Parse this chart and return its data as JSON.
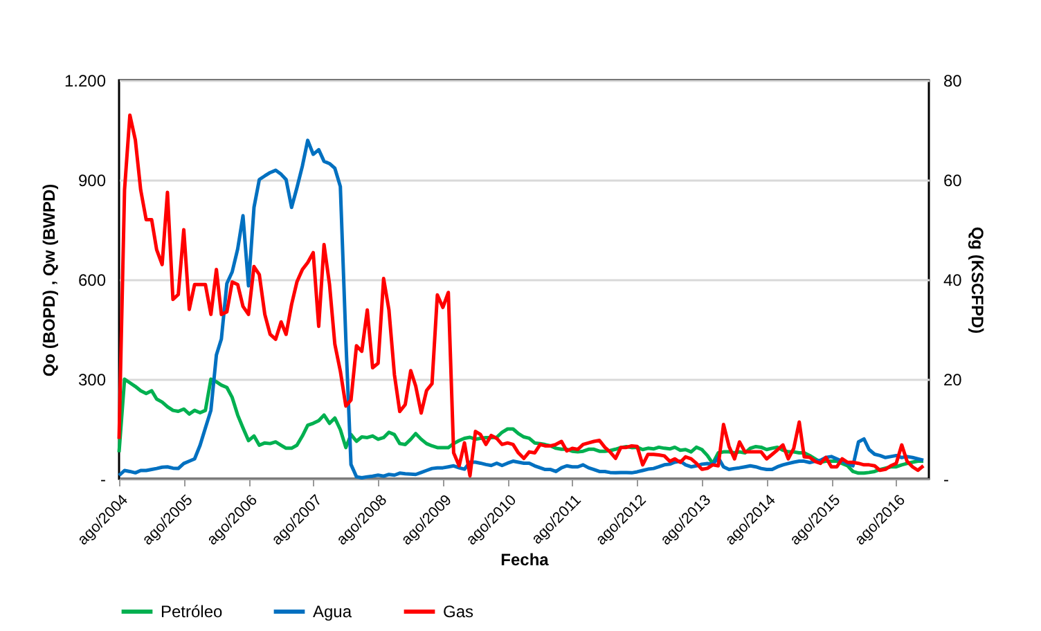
{
  "chart_data": {
    "type": "line",
    "xlabel": "Fecha",
    "ylabel": "Qo (BOPD) , Qw (BWPD)",
    "y2label": "Qg (KSCFPD)",
    "x": [
      "2004-08",
      "2004-09",
      "2004-10",
      "2004-11",
      "2004-12",
      "2005-01",
      "2005-02",
      "2005-03",
      "2005-04",
      "2005-05",
      "2005-06",
      "2005-07",
      "2005-08",
      "2005-09",
      "2005-10",
      "2005-11",
      "2005-12",
      "2006-01",
      "2006-02",
      "2006-03",
      "2006-04",
      "2006-05",
      "2006-06",
      "2006-07",
      "2006-08",
      "2006-09",
      "2006-10",
      "2006-11",
      "2006-12",
      "2007-01",
      "2007-02",
      "2007-03",
      "2007-04",
      "2007-05",
      "2007-06",
      "2007-07",
      "2007-08",
      "2007-09",
      "2007-10",
      "2007-11",
      "2007-12",
      "2008-01",
      "2008-02",
      "2008-03",
      "2008-04",
      "2008-05",
      "2008-06",
      "2008-07",
      "2008-08",
      "2008-09",
      "2008-10",
      "2008-11",
      "2008-12",
      "2009-01",
      "2009-02",
      "2009-03",
      "2009-04",
      "2009-05",
      "2009-06",
      "2009-07",
      "2009-08",
      "2009-09",
      "2009-10",
      "2009-11",
      "2009-12",
      "2010-01",
      "2010-02",
      "2010-03",
      "2010-04",
      "2010-05",
      "2010-06",
      "2010-07",
      "2010-08",
      "2010-09",
      "2010-10",
      "2010-11",
      "2010-12",
      "2011-01",
      "2011-02",
      "2011-03",
      "2011-04",
      "2011-05",
      "2011-06",
      "2011-07",
      "2011-08",
      "2011-09",
      "2011-10",
      "2011-11",
      "2011-12",
      "2012-01",
      "2012-02",
      "2012-03",
      "2012-04",
      "2012-05",
      "2012-06",
      "2012-07",
      "2012-08",
      "2012-09",
      "2012-10",
      "2012-11",
      "2012-12",
      "2013-01",
      "2013-02",
      "2013-03",
      "2013-04",
      "2013-05",
      "2013-06",
      "2013-07",
      "2013-08",
      "2013-09",
      "2013-10",
      "2013-11",
      "2013-12",
      "2014-01",
      "2014-02",
      "2014-03",
      "2014-04",
      "2014-05",
      "2014-06",
      "2014-07",
      "2014-08",
      "2014-09",
      "2014-10",
      "2014-11",
      "2014-12",
      "2015-01",
      "2015-02",
      "2015-03",
      "2015-04",
      "2015-05",
      "2015-06",
      "2015-07",
      "2015-08",
      "2015-09",
      "2015-10",
      "2015-11",
      "2015-12",
      "2016-01",
      "2016-02",
      "2016-03",
      "2016-04",
      "2016-05",
      "2016-06",
      "2016-07",
      "2016-08",
      "2016-09",
      "2016-10",
      "2016-11",
      "2016-12",
      "2017-01"
    ],
    "xlim": [
      "2004-08",
      "2017-02"
    ],
    "xticks": [
      {
        "value": "2004-08",
        "label": "ago/2004"
      },
      {
        "value": "2005-08",
        "label": "ago/2005"
      },
      {
        "value": "2006-08",
        "label": "ago/2006"
      },
      {
        "value": "2007-08",
        "label": "ago/2007"
      },
      {
        "value": "2008-08",
        "label": "ago/2008"
      },
      {
        "value": "2009-08",
        "label": "ago/2009"
      },
      {
        "value": "2010-08",
        "label": "ago/2010"
      },
      {
        "value": "2011-08",
        "label": "ago/2011"
      },
      {
        "value": "2012-08",
        "label": "ago/2012"
      },
      {
        "value": "2013-08",
        "label": "ago/2013"
      },
      {
        "value": "2014-08",
        "label": "ago/2014"
      },
      {
        "value": "2015-08",
        "label": "ago/2015"
      },
      {
        "value": "2016-08",
        "label": "ago/2016"
      }
    ],
    "ylim": [
      0,
      1200
    ],
    "yticks": [
      {
        "value": 0,
        "label": "-"
      },
      300,
      600,
      900,
      {
        "value": 1200,
        "label": "1.200"
      }
    ],
    "y2lim": [
      0,
      80
    ],
    "y2ticks": [
      {
        "value": 0,
        "label": "-"
      },
      20,
      40,
      60,
      80
    ],
    "grid": "y",
    "legend": "bottom",
    "marker": "none",
    "line_style": "solid",
    "series": [
      {
        "name": "Petróleo",
        "color": "#00b050",
        "axis": "y",
        "values": [
          80,
          300,
          289,
          278,
          265,
          257,
          265,
          240,
          231,
          217,
          206,
          203,
          210,
          195,
          206,
          199,
          206,
          300,
          292,
          282,
          275,
          245,
          192,
          153,
          115,
          129,
          101,
          108,
          106,
          111,
          101,
          92,
          92,
          101,
          129,
          161,
          167,
          175,
          192,
          167,
          183,
          148,
          94,
          133,
          113,
          126,
          124,
          129,
          119,
          124,
          140,
          133,
          106,
          103,
          119,
          136,
          119,
          106,
          99,
          94,
          94,
          94,
          106,
          115,
          122,
          125,
          119,
          122,
          124,
          124,
          125,
          140,
          150,
          150,
          136,
          126,
          122,
          108,
          106,
          103,
          99,
          92,
          89,
          89,
          83,
          81,
          83,
          89,
          89,
          83,
          83,
          85,
          89,
          94,
          97,
          94,
          95,
          88,
          92,
          90,
          95,
          92,
          90,
          95,
          86,
          88,
          81,
          95,
          88,
          70,
          46,
          78,
          81,
          81,
          78,
          81,
          78,
          92,
          97,
          95,
          88,
          92,
          95,
          86,
          81,
          81,
          78,
          78,
          70,
          60,
          50,
          53,
          53,
          53,
          46,
          39,
          22,
          17,
          17,
          19,
          22,
          28,
          32,
          36,
          36,
          42,
          46,
          50,
          53,
          53
        ]
      },
      {
        "name": "Agua",
        "color": "#0070c0",
        "axis": "y",
        "values": [
          10,
          25,
          22,
          18,
          25,
          25,
          28,
          31,
          35,
          36,
          32,
          31,
          46,
          53,
          60,
          101,
          153,
          206,
          373,
          421,
          588,
          623,
          692,
          792,
          581,
          817,
          901,
          912,
          922,
          929,
          917,
          901,
          817,
          876,
          942,
          1019,
          977,
          991,
          956,
          949,
          935,
          880,
          420,
          43,
          6,
          3,
          6,
          8,
          11,
          8,
          13,
          11,
          17,
          15,
          14,
          13,
          19,
          25,
          31,
          33,
          33,
          36,
          39,
          33,
          29,
          50,
          50,
          47,
          43,
          40,
          47,
          40,
          47,
          53,
          50,
          47,
          47,
          39,
          33,
          28,
          28,
          22,
          33,
          39,
          36,
          36,
          42,
          33,
          28,
          22,
          22,
          19,
          18,
          19,
          19,
          18,
          21,
          25,
          29,
          31,
          36,
          42,
          44,
          50,
          53,
          42,
          36,
          39,
          44,
          46,
          43,
          64,
          36,
          28,
          31,
          33,
          36,
          39,
          36,
          31,
          28,
          28,
          36,
          42,
          46,
          50,
          53,
          53,
          49,
          53,
          56,
          64,
          67,
          60,
          53,
          46,
          39,
          111,
          120,
          88,
          74,
          70,
          64,
          67,
          70,
          64,
          67,
          64,
          60,
          56
        ]
      },
      {
        "name": "Gas",
        "color": "#ff0000",
        "axis": "y2",
        "values": [
          8,
          58,
          73,
          68,
          58,
          52,
          52,
          46,
          43,
          57.5,
          36,
          37,
          50,
          34,
          39,
          39,
          39,
          33,
          42,
          33,
          33.5,
          39.5,
          39,
          34.6,
          33,
          42.6,
          41,
          33,
          29,
          28,
          31.5,
          29,
          35,
          39.5,
          42,
          43.4,
          45.4,
          30.6,
          47,
          39,
          27,
          21.6,
          14.6,
          15.8,
          26.7,
          25.6,
          33.9,
          22.3,
          23.2,
          40.2,
          33.9,
          20.9,
          13.5,
          14.9,
          21.7,
          18.6,
          13.2,
          17.7,
          19.1,
          36.9,
          34.4,
          37.4,
          5.2,
          2.6,
          7.2,
          0.6,
          9.5,
          8.9,
          6.9,
          8.7,
          8.1,
          6.9,
          7.2,
          6.9,
          5.2,
          4.1,
          5.4,
          5.2,
          6.9,
          6.6,
          6.6,
          6.9,
          7.5,
          5.6,
          6.1,
          5.9,
          6.9,
          7.2,
          7.5,
          7.7,
          6.3,
          5.4,
          4.1,
          6.3,
          6.3,
          6.6,
          6.5,
          2.8,
          4.9,
          4.9,
          4.8,
          4.6,
          3.5,
          4.0,
          3.3,
          4.4,
          4.0,
          3.1,
          1.9,
          2.1,
          2.8,
          2.6,
          10.9,
          6.5,
          4.0,
          7.4,
          5.4,
          5.4,
          5.4,
          5.4,
          4.0,
          4.9,
          5.8,
          6.8,
          4.0,
          6.1,
          11.4,
          4.4,
          4.3,
          3.5,
          3.1,
          4.3,
          2.4,
          2.4,
          4.0,
          3.3,
          3.3,
          3.1,
          2.8,
          2.8,
          2.6,
          1.7,
          1.9,
          2.6,
          3.1,
          6.8,
          3.5,
          2.4,
          1.7,
          2.6
        ]
      }
    ]
  }
}
